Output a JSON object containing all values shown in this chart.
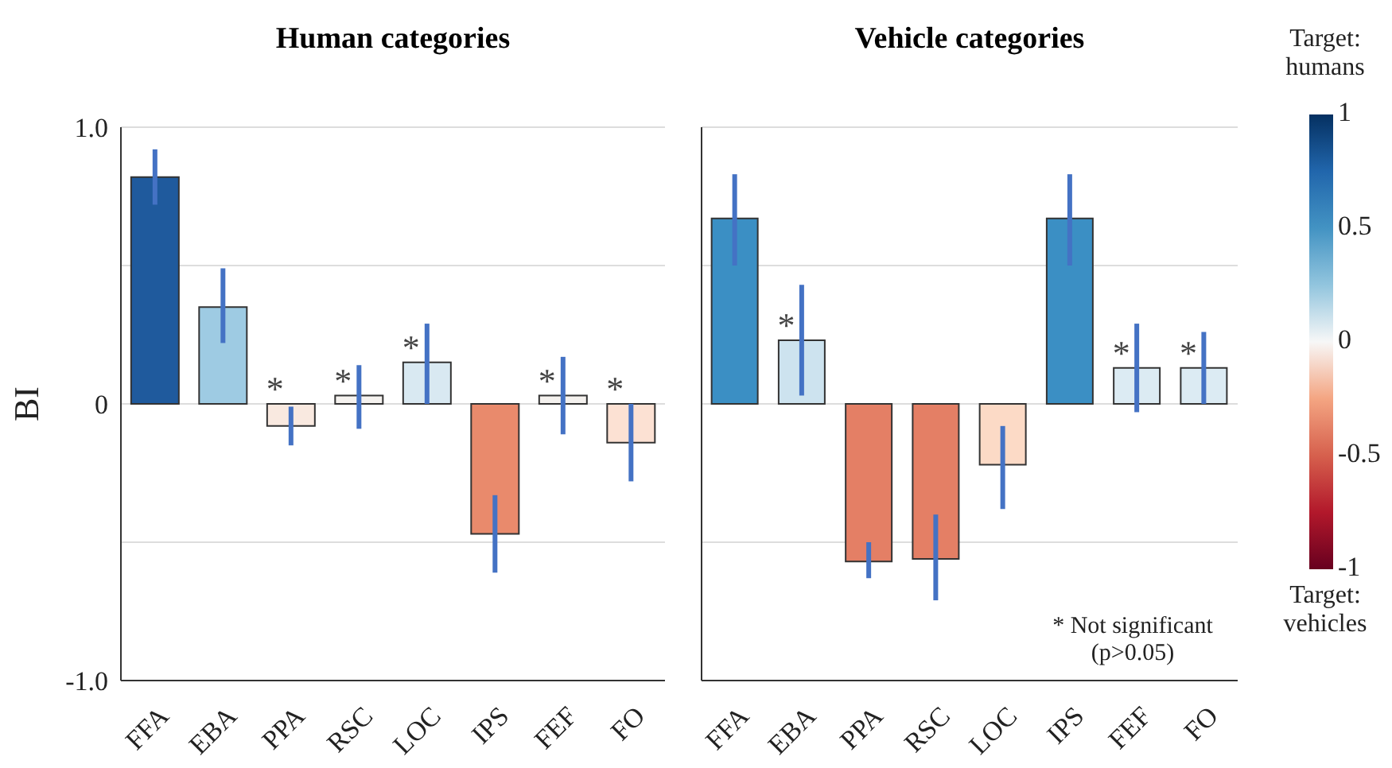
{
  "chart_data": [
    {
      "type": "bar",
      "title": "Human categories",
      "ylabel": "BI",
      "categories": [
        "FFA",
        "EBA",
        "PPA",
        "RSC",
        "LOC",
        "IPS",
        "FEF",
        "FO"
      ],
      "values": [
        0.82,
        0.35,
        -0.08,
        0.03,
        0.15,
        -0.47,
        0.03,
        -0.14
      ],
      "colors": [
        "#1f5a9d",
        "#9ecbe3",
        "#f9e9e0",
        "#f5f2ef",
        "#d9e9f2",
        "#e98a6c",
        "#f4f1ee",
        "#fce1d3"
      ],
      "errors": [
        [
          0.72,
          0.92
        ],
        [
          0.22,
          0.49
        ],
        [
          -0.15,
          -0.01
        ],
        [
          -0.09,
          0.14
        ],
        [
          0.0,
          0.29
        ],
        [
          -0.61,
          -0.33
        ],
        [
          -0.11,
          0.17
        ],
        [
          -0.28,
          0.0
        ]
      ],
      "ylim": [
        -1,
        1
      ],
      "yticks": [
        {
          "value": 1,
          "label": "1.0"
        },
        {
          "value": 0.5,
          "label": null
        },
        0,
        {
          "value": -0.5,
          "label": null
        },
        {
          "value": -1,
          "label": "-1.0"
        }
      ],
      "grid": "y",
      "legend": false,
      "annotations": [
        {
          "text": "*",
          "x": "PPA",
          "y": -0.08
        },
        {
          "text": "*",
          "x": "RSC",
          "y": 0.03
        },
        {
          "text": "*",
          "x": "LOC",
          "y": 0.15
        },
        {
          "text": "*",
          "x": "FEF",
          "y": 0.03
        },
        {
          "text": "*",
          "x": "FO",
          "y": -0.14
        }
      ]
    },
    {
      "type": "bar",
      "title": "Vehicle categories",
      "categories": [
        "FFA",
        "EBA",
        "PPA",
        "RSC",
        "LOC",
        "IPS",
        "FEF",
        "FO"
      ],
      "values": [
        0.67,
        0.23,
        -0.57,
        -0.56,
        -0.22,
        0.67,
        0.13,
        0.13
      ],
      "colors": [
        "#3b8fc4",
        "#cde3ef",
        "#e47f65",
        "#e47f65",
        "#fcdac6",
        "#3b8fc4",
        "#dcebf3",
        "#dcebf3"
      ],
      "errors": [
        [
          0.5,
          0.83
        ],
        [
          0.03,
          0.43
        ],
        [
          -0.63,
          -0.5
        ],
        [
          -0.71,
          -0.4
        ],
        [
          -0.38,
          -0.08
        ],
        [
          0.5,
          0.83
        ],
        [
          -0.03,
          0.29
        ],
        [
          0.0,
          0.26
        ]
      ],
      "ylim": [
        -1,
        1
      ],
      "yticks": [
        1,
        0.5,
        0,
        -0.5,
        -1
      ],
      "tick_labels": "x",
      "grid": "y",
      "legend": false,
      "clabel": "Target: humans",
      "clim": [
        -1,
        1
      ],
      "cticks": [
        1,
        0.5,
        0,
        -0.5,
        -1
      ],
      "annotations": [
        "* Not significant (p>0.05)",
        "Target: vehicles",
        {
          "text": "*",
          "x": "EBA",
          "y": 0.23
        },
        {
          "text": "*",
          "x": "FEF",
          "y": 0.13
        },
        {
          "text": "*",
          "x": "FO",
          "y": 0.13
        }
      ]
    }
  ]
}
